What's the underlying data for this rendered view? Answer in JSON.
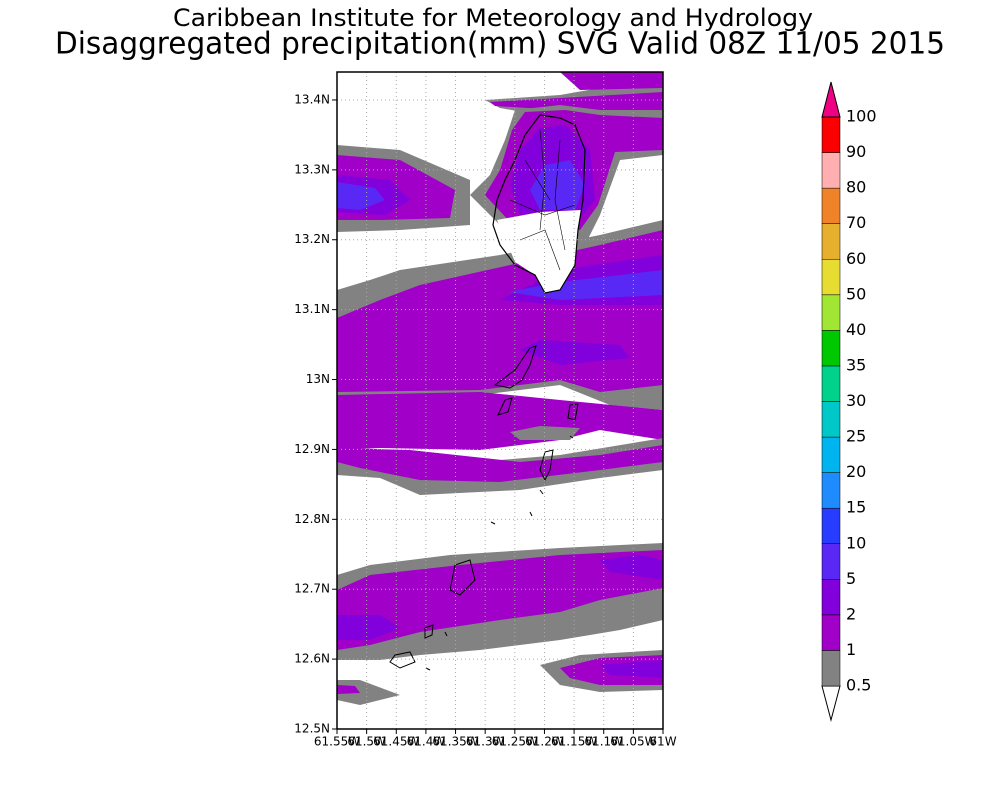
{
  "header": {
    "title": "Caribbean Institute for Meteorology and Hydrology",
    "subtitle": "Disaggregated precipitation(mm) SVG Valid 08Z 11/05 2015"
  },
  "map": {
    "lat_range": [
      12.5,
      13.44
    ],
    "lon_range": [
      -61.55,
      -61
    ],
    "lat_ticks": [
      {
        "value": 12.5,
        "label": "12.5N"
      },
      {
        "value": 12.6,
        "label": "12.6N"
      },
      {
        "value": 12.7,
        "label": "12.7N"
      },
      {
        "value": 12.8,
        "label": "12.8N"
      },
      {
        "value": 12.9,
        "label": "12.9N"
      },
      {
        "value": 13,
        "label": "13N"
      },
      {
        "value": 13.1,
        "label": "13.1N"
      },
      {
        "value": 13.2,
        "label": "13.2N"
      },
      {
        "value": 13.3,
        "label": "13.3N"
      },
      {
        "value": 13.4,
        "label": "13.4N"
      }
    ],
    "lon_ticks": [
      {
        "value": -61.55,
        "label": "61.55W"
      },
      {
        "value": -61.5,
        "label": "61.5W"
      },
      {
        "value": -61.45,
        "label": "61.45W"
      },
      {
        "value": -61.4,
        "label": "61.4W"
      },
      {
        "value": -61.35,
        "label": "61.35W"
      },
      {
        "value": -61.3,
        "label": "61.3W"
      },
      {
        "value": -61.25,
        "label": "61.25W"
      },
      {
        "value": -61.2,
        "label": "61.2W"
      },
      {
        "value": -61.15,
        "label": "61.15W"
      },
      {
        "value": -61.1,
        "label": "61.1W"
      },
      {
        "value": -61.05,
        "label": "61.05W"
      },
      {
        "value": -61,
        "label": "61W"
      }
    ],
    "grid": true
  },
  "colorbar": {
    "levels": [
      0.5,
      1,
      2,
      5,
      10,
      15,
      20,
      25,
      30,
      35,
      40,
      50,
      60,
      70,
      80,
      90,
      100
    ],
    "colors": [
      "#828282",
      "#a000c8",
      "#8200dc",
      "#5a28f5",
      "#283cff",
      "#1e8cff",
      "#00b4f0",
      "#00c8c8",
      "#00d28c",
      "#00c800",
      "#a0e632",
      "#e6dc32",
      "#e6af2d",
      "#f08228",
      "#ffafaf",
      "#fa0000",
      "#f03c3c"
    ],
    "under_color": "#ffffff",
    "over_color": "#f00082"
  }
}
